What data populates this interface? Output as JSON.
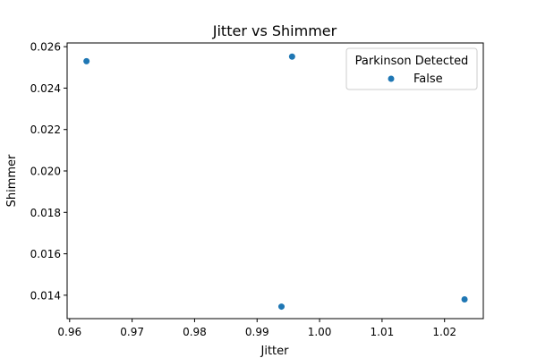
{
  "chart_data": {
    "type": "scatter",
    "title": "Jitter vs Shimmer",
    "xlabel": "Jitter",
    "ylabel": "Shimmer",
    "xlim": [
      0.9596,
      1.0262
    ],
    "ylim": [
      0.01287,
      0.02618
    ],
    "x_ticks": [
      0.96,
      0.97,
      0.98,
      0.99,
      1.0,
      1.01,
      1.02
    ],
    "x_tick_labels": [
      "0.96",
      "0.97",
      "0.98",
      "0.99",
      "1.00",
      "1.01",
      "1.02"
    ],
    "y_ticks": [
      0.014,
      0.016,
      0.018,
      0.02,
      0.022,
      0.024,
      0.026
    ],
    "y_tick_labels": [
      "0.014",
      "0.016",
      "0.018",
      "0.020",
      "0.022",
      "0.024",
      "0.026"
    ],
    "grid": false,
    "legend": {
      "title": "Parkinson Detected",
      "placement": "top-right",
      "entries": [
        {
          "label": "False",
          "color": "#1f77b4"
        }
      ]
    },
    "series": [
      {
        "name": "False",
        "color": "#1f77b4",
        "points": [
          {
            "x": 0.9627,
            "y": 0.0253
          },
          {
            "x": 0.9956,
            "y": 0.02552
          },
          {
            "x": 0.9939,
            "y": 0.01345
          },
          {
            "x": 1.0232,
            "y": 0.0138
          }
        ]
      }
    ]
  }
}
